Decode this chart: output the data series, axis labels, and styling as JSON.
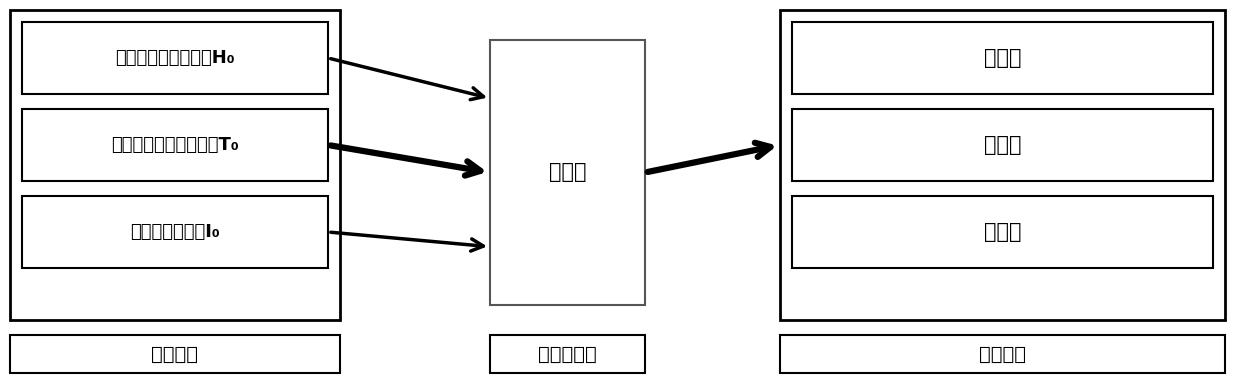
{
  "fig_width": 12.4,
  "fig_height": 3.91,
  "dpi": 100,
  "bg_color": "#ffffff",
  "box_edge_color": "#000000",
  "box_face_color": "#ffffff",
  "arrow_color": "#000000",
  "input_boxes": [
    {
      "label": "压缩机高压压力检测H₀"
    },
    {
      "label": "压缩机排气管温度检测T₀"
    },
    {
      "label": "压缩机电流检测I₀"
    }
  ],
  "main_box_label": "主控器",
  "output_boxes": [
    {
      "label": "压缩机"
    },
    {
      "label": "外风机"
    },
    {
      "label": "内风机"
    }
  ],
  "label_detect": "检测模块",
  "label_main": "主控器模块",
  "label_load": "负载模块",
  "font_size_input": 13,
  "font_size_main": 15,
  "font_size_output": 15,
  "font_size_label": 14
}
